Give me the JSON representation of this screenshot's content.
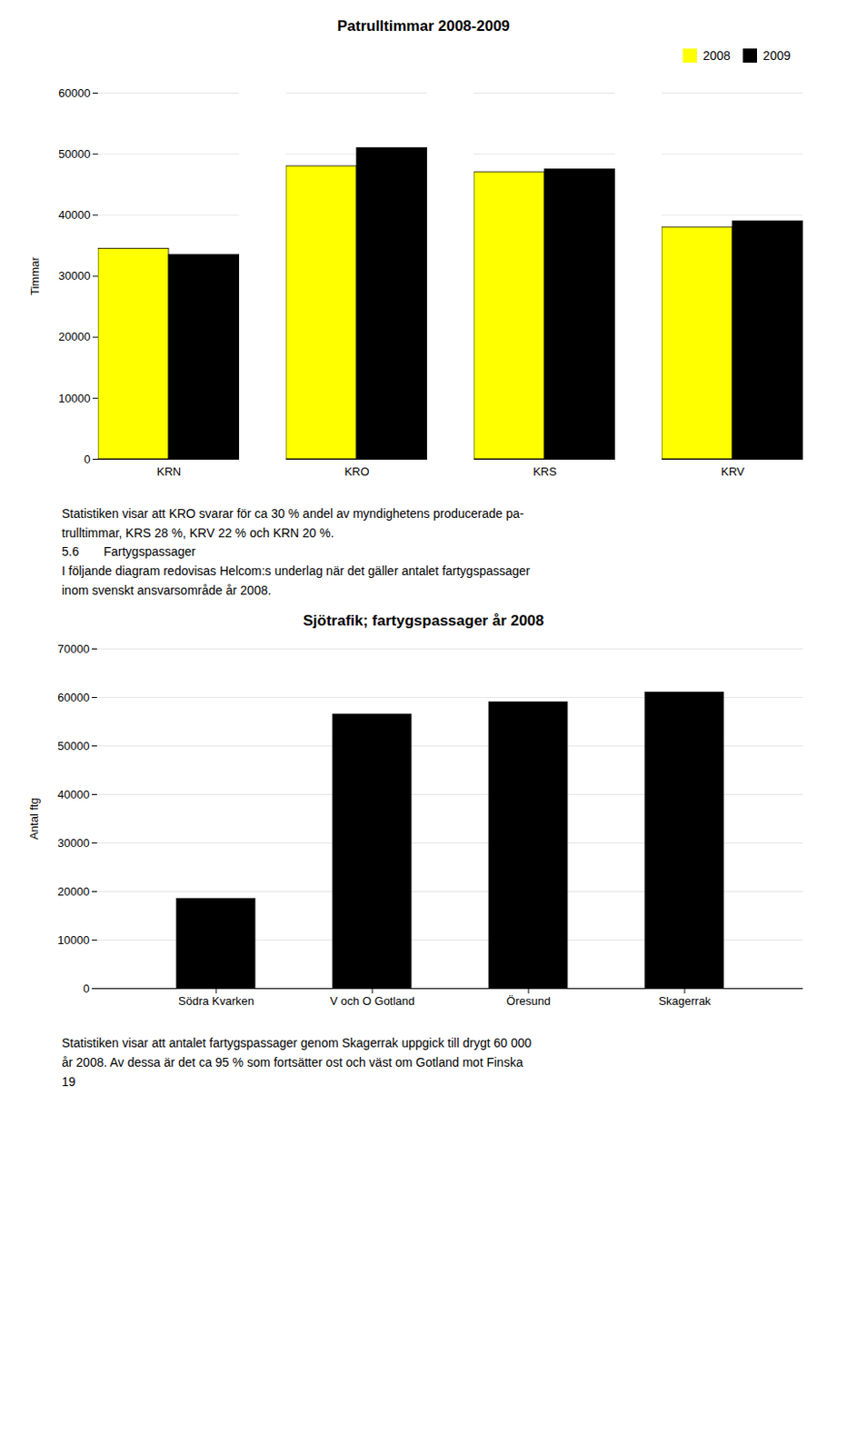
{
  "chart_data": [
    {
      "type": "bar",
      "title": "Patrulltimmar 2008-2009",
      "categories": [
        "KRN",
        "KRO",
        "KRS",
        "KRV"
      ],
      "series": [
        {
          "name": "2008",
          "color": "#FFFF00",
          "values": [
            34500,
            48000,
            47000,
            38000
          ]
        },
        {
          "name": "2009",
          "color": "#000000",
          "values": [
            33500,
            51000,
            47500,
            39000
          ]
        }
      ],
      "ylabel": "Timmar",
      "ylim": [
        0,
        60000
      ],
      "yticks": [
        0,
        10000,
        20000,
        30000,
        40000,
        50000,
        60000
      ],
      "grid": true,
      "legend": "upper right",
      "annotations": [
        [
          "Statistiken visar att KRO svarar för ca 30 % andel av myndighetens producerade pa-"
        ],
        [
          "trulltimmar, KRS 28 %, KRV 22 % och KRN 20 %."
        ],
        [
          "5.6",
          "Fartygspassager"
        ],
        [
          "I följande diagram redovisas Helcom:s underlag när det gäller antalet fartygspassager"
        ],
        [
          "inom svenskt ansvarsområde år 2008."
        ]
      ]
    },
    {
      "type": "bar",
      "title": "Sjötrafik; fartygspassager år 2008",
      "categories": [
        "Södra Kvarken",
        "V och O Gotland",
        "Öresund",
        "Skagerrak"
      ],
      "values": [
        18500,
        56500,
        59000,
        61000
      ],
      "color": "#000000",
      "ylabel": "Antal ftg",
      "ylim": [
        0,
        70000
      ],
      "yticks": [
        0,
        10000,
        20000,
        30000,
        40000,
        50000,
        60000,
        70000
      ],
      "grid": true,
      "annotations": [
        [
          "Statistiken visar att antalet fartygspassager genom Skagerrak uppgick till drygt 60 000"
        ],
        [
          "år 2008. Av dessa är det ca 95 % som fortsätter ost och väst om Gotland mot Finska"
        ],
        [
          "19"
        ]
      ]
    }
  ]
}
